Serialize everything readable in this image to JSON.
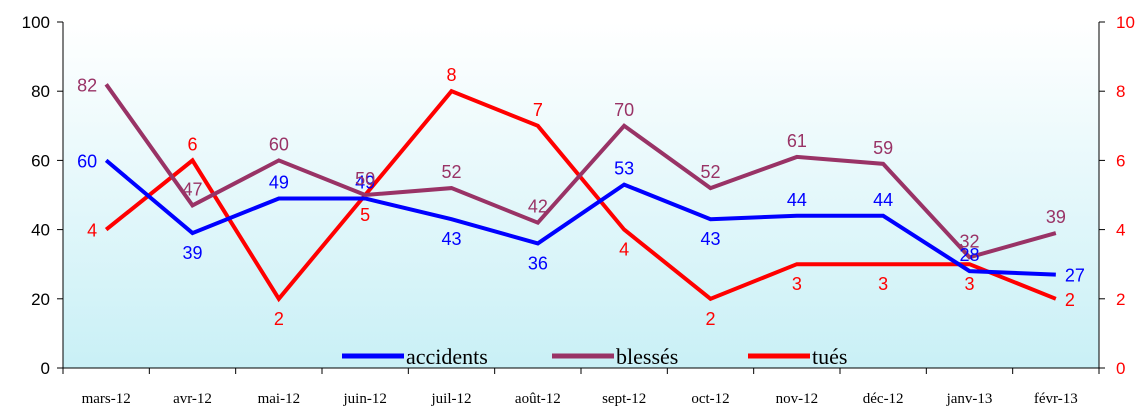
{
  "chart_data": {
    "type": "line",
    "categories": [
      "mars-12",
      "avr-12",
      "mai-12",
      "juin-12",
      "juil-12",
      "août-12",
      "sept-12",
      "oct-12",
      "nov-12",
      "déc-12",
      "janv-13",
      "févr-13"
    ],
    "y_left": {
      "ylim": [
        0,
        100
      ],
      "ticks": [
        "0",
        "20",
        "40",
        "60",
        "80",
        "100"
      ]
    },
    "y_right": {
      "ylim": [
        0,
        10
      ],
      "ticks": [
        "0",
        "2",
        "4",
        "6",
        "8",
        "10"
      ],
      "color": "#ff0000"
    },
    "series": [
      {
        "name": "accidents",
        "axis": "left",
        "color": "#0000ff",
        "values": [
          60,
          39,
          49,
          49,
          43,
          36,
          53,
          43,
          44,
          44,
          28,
          27
        ]
      },
      {
        "name": "blessés",
        "axis": "left",
        "color": "#993366",
        "values": [
          82,
          47,
          60,
          50,
          52,
          42,
          70,
          52,
          61,
          59,
          32,
          39
        ]
      },
      {
        "name": "tués",
        "axis": "right",
        "color": "#ff0000",
        "values": [
          4,
          6,
          2,
          5,
          8,
          7,
          4,
          2,
          3,
          3,
          3,
          2
        ]
      }
    ],
    "legend": {
      "position": "bottom-inside"
    },
    "background": {
      "top": "#ffffff",
      "bottom": "#c9f0f6"
    }
  }
}
